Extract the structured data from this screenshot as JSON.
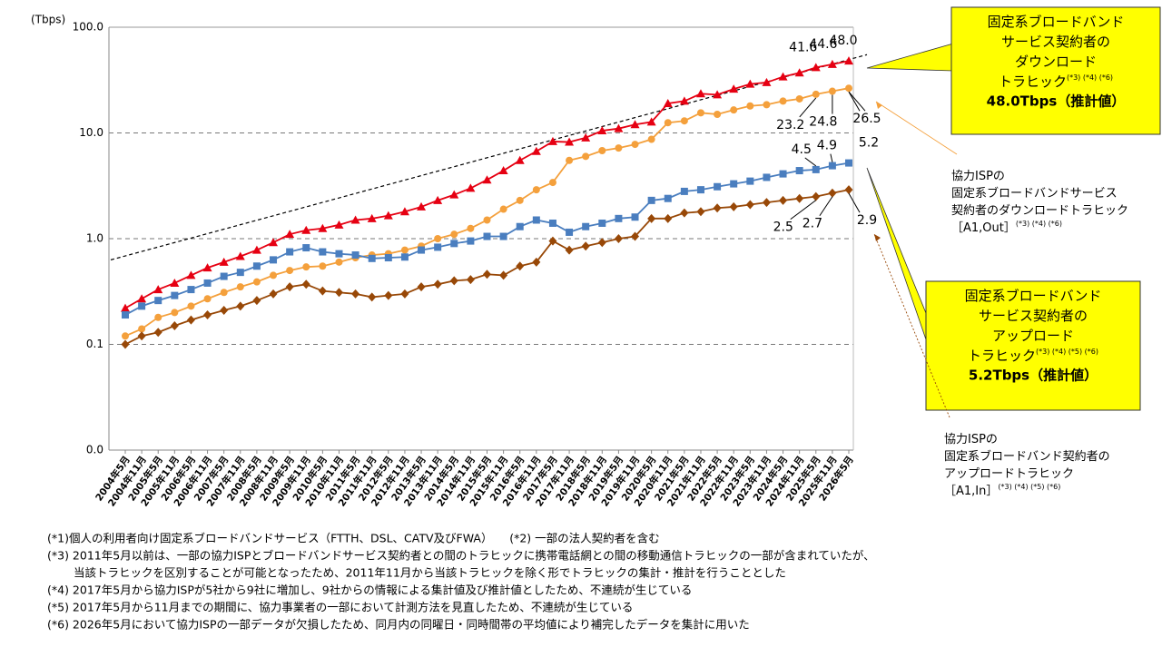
{
  "chart_data": {
    "type": "line",
    "y_label": "(Tbps)",
    "log_scale": true,
    "ylim": [
      0.01,
      100
    ],
    "yticks": [
      {
        "value": 0.01,
        "label": "0.0"
      },
      0.1,
      {
        "value": 1,
        "label": "1.0"
      },
      {
        "value": 10,
        "label": "10.0"
      },
      {
        "value": 100,
        "label": "100.0"
      }
    ],
    "grid": true,
    "categories": [
      "2004年5月",
      "2004年11月",
      "2005年5月",
      "2005年11月",
      "2006年5月",
      "2006年11月",
      "2007年5月",
      "2007年11月",
      "2008年5月",
      "2008年11月",
      "2009年5月",
      "2009年11月",
      "2010年5月",
      "2010年11月",
      "2011年5月",
      "2011年11月",
      "2012年5月",
      "2012年11月",
      "2013年5月",
      "2013年11月",
      "2014年5月",
      "2014年11月",
      "2015年5月",
      "2015年11月",
      "2016年5月",
      "2016年11月",
      "2017年5月",
      "2017年11月",
      "2018年5月",
      "2018年11月",
      "2019年5月",
      "2019年11月",
      "2020年5月",
      "2020年11月",
      "2021年5月",
      "2021年11月",
      "2022年5月",
      "2022年11月",
      "2023年5月",
      "2023年11月",
      "2024年5月",
      "2024年11月",
      "2025年5月",
      "2025年11月",
      "2026年5月"
    ],
    "series": [
      {
        "name": "固定系ブロードバンドサービス契約者のダウンロードトラヒック",
        "color": "#e60012",
        "marker": "triangle",
        "values": [
          0.22,
          0.27,
          0.33,
          0.38,
          0.45,
          0.53,
          0.6,
          0.68,
          0.78,
          0.92,
          1.1,
          1.2,
          1.25,
          1.35,
          1.5,
          1.55,
          1.65,
          1.8,
          2.0,
          2.3,
          2.6,
          3.0,
          3.6,
          4.4,
          5.5,
          6.7,
          8.3,
          8.2,
          9.0,
          10.5,
          11.0,
          12.0,
          12.7,
          19.0,
          20.0,
          23.5,
          23.0,
          26.0,
          29.0,
          30.0,
          34.0,
          37.0,
          41.6,
          44.6,
          48.0
        ],
        "value_labels": [
          null,
          null,
          null,
          null,
          null,
          null,
          null,
          null,
          null,
          null,
          null,
          null,
          null,
          null,
          null,
          null,
          null,
          null,
          null,
          null,
          null,
          null,
          null,
          null,
          null,
          null,
          null,
          null,
          null,
          null,
          null,
          null,
          null,
          null,
          null,
          null,
          null,
          null,
          null,
          null,
          null,
          null,
          "41.6",
          "44.6",
          "48.0"
        ]
      },
      {
        "name": "協力ISPの固定系ブロードバンドサービス契約者のダウンロードトラヒック",
        "color": "#f4a03c",
        "marker": "circle",
        "values": [
          0.12,
          0.14,
          0.18,
          0.2,
          0.23,
          0.27,
          0.31,
          0.35,
          0.39,
          0.45,
          0.5,
          0.54,
          0.55,
          0.6,
          0.66,
          0.7,
          0.72,
          0.78,
          0.85,
          1.0,
          1.1,
          1.25,
          1.5,
          1.9,
          2.3,
          2.9,
          3.4,
          5.5,
          6.0,
          6.8,
          7.2,
          7.8,
          8.7,
          12.5,
          13.0,
          15.5,
          15.0,
          16.5,
          18.0,
          18.5,
          20.0,
          21.0,
          23.2,
          24.8,
          26.5
        ],
        "value_labels": [
          null,
          null,
          null,
          null,
          null,
          null,
          null,
          null,
          null,
          null,
          null,
          null,
          null,
          null,
          null,
          null,
          null,
          null,
          null,
          null,
          null,
          null,
          null,
          null,
          null,
          null,
          null,
          null,
          null,
          null,
          null,
          null,
          null,
          null,
          null,
          null,
          null,
          null,
          null,
          null,
          null,
          null,
          "23.2",
          "24.8",
          "26.5"
        ]
      },
      {
        "name": "固定系ブロードバンドサービス契約者のアップロードトラヒック",
        "color": "#4a7ebf",
        "marker": "square",
        "values": [
          0.19,
          0.23,
          0.26,
          0.29,
          0.33,
          0.38,
          0.44,
          0.48,
          0.55,
          0.63,
          0.75,
          0.82,
          0.75,
          0.72,
          0.7,
          0.65,
          0.66,
          0.67,
          0.78,
          0.83,
          0.9,
          0.95,
          1.05,
          1.05,
          1.3,
          1.5,
          1.4,
          1.15,
          1.3,
          1.4,
          1.55,
          1.6,
          2.3,
          2.4,
          2.8,
          2.9,
          3.1,
          3.3,
          3.5,
          3.8,
          4.1,
          4.4,
          4.5,
          4.9,
          5.2
        ],
        "labeled": [
          42,
          43,
          44
        ]
      },
      {
        "name": "協力ISPの固定系ブロードバンド契約者のアップロードトラヒック",
        "color": "#984807",
        "marker": "diamond",
        "values": [
          0.1,
          0.12,
          0.13,
          0.15,
          0.17,
          0.19,
          0.21,
          0.23,
          0.26,
          0.3,
          0.35,
          0.37,
          0.32,
          0.31,
          0.3,
          0.28,
          0.29,
          0.3,
          0.35,
          0.37,
          0.4,
          0.41,
          0.46,
          0.45,
          0.55,
          0.6,
          0.95,
          0.78,
          0.85,
          0.92,
          1.0,
          1.05,
          1.55,
          1.55,
          1.75,
          1.8,
          1.95,
          2.0,
          2.1,
          2.2,
          2.3,
          2.4,
          2.5,
          2.7,
          2.9
        ],
        "labeled": [
          42,
          43,
          44
        ]
      }
    ],
    "trendline": {
      "start": 0.63,
      "end": 55
    },
    "callouts": [
      {
        "lines": [
          "固定系ブロードバンド",
          "サービス契約者の",
          "ダウンロード",
          "トラヒック"
        ],
        "note": "(*3) (*4) (*6)",
        "emphasis": "48.0Tbps（推計値）"
      },
      {
        "lines": [
          "協力ISPの",
          "固定系ブロードバンドサービス",
          "契約者のダウンロードトラヒック",
          "［A1,Out］"
        ],
        "note": "(*3) (*4) (*6)"
      },
      {
        "lines": [
          "固定系ブロードバンド",
          "サービス契約者の",
          "アップロード",
          "トラヒック"
        ],
        "note": "(*3) (*4) (*5) (*6)",
        "emphasis": "5.2Tbps（推計値）"
      },
      {
        "lines": [
          "協力ISPの",
          "固定系ブロードバンド契約者の",
          "アップロードトラヒック",
          "［A1,In］"
        ],
        "note": "(*3) (*4) (*5) (*6)"
      }
    ],
    "footnotes": [
      "(*1)個人の利用者向け固定系ブロードバンドサービス（FTTH、DSL、CATV及びFWA）　　(*2) 一部の法人契約者を含む",
      "(*3) 2011年5月以前は、一部の協力ISPとブロードバンドサービス契約者との間のトラヒックに携帯電話網との間の移動通信トラヒックの一部が含まれていたが、",
      "　　 当該トラヒックを区別することが可能となったため、2011年11月から当該トラヒックを除く形でトラヒックの集計・推計を行うこととした",
      "(*4) 2017年5月から協力ISPが5社から9社に増加し、9社からの情報による集計値及び推計値としたため、不連続が生じている",
      "(*5) 2017年5月から11月までの期間に、協力事業者の一部において計測方法を見直したため、不連続が生じている",
      "(*6) 2026年5月において協力ISPの一部データが欠損したため、同月内の同曜日・同時間帯の平均値により補完したデータを集計に用いた"
    ]
  }
}
